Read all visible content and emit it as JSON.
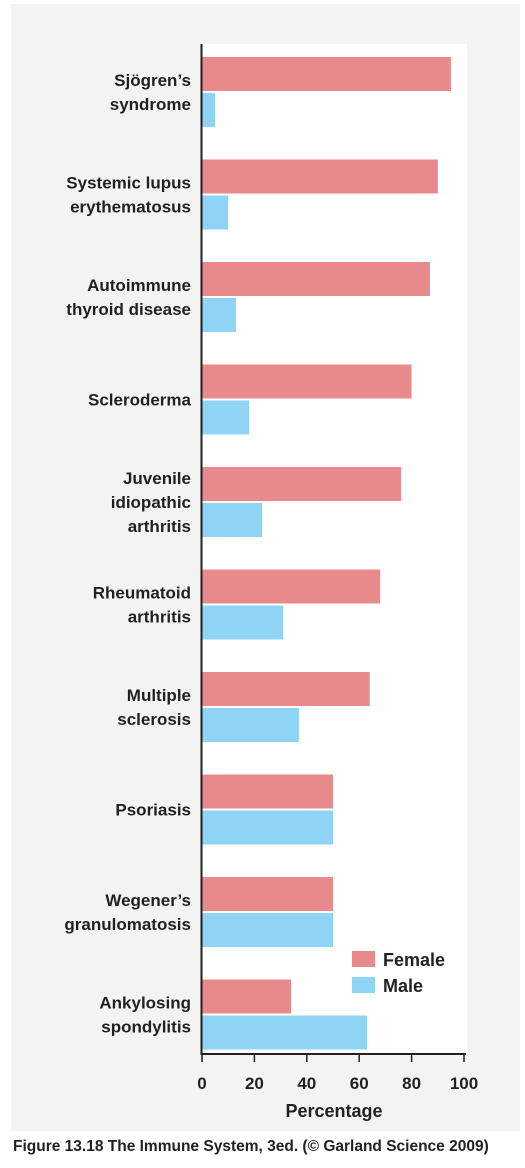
{
  "chart_data": {
    "type": "bar",
    "orientation": "horizontal",
    "categories": [
      [
        "Sjögren’s",
        "syndrome"
      ],
      [
        "Systemic lupus",
        "erythematosus"
      ],
      [
        "Autoimmune",
        "thyroid disease"
      ],
      [
        "Scleroderma"
      ],
      [
        "Juvenile",
        "idiopathic",
        "arthritis"
      ],
      [
        "Rheumatoid",
        "arthritis"
      ],
      [
        "Multiple",
        "sclerosis"
      ],
      [
        "Psoriasis"
      ],
      [
        "Wegener’s",
        "granulomatosis"
      ],
      [
        "Ankylosing",
        "spondylitis"
      ]
    ],
    "series": [
      {
        "name": "Female",
        "color": "#e8898c",
        "values": [
          95,
          90,
          87,
          80,
          76,
          68,
          64,
          50,
          50,
          34
        ]
      },
      {
        "name": "Male",
        "color": "#8fd3f5",
        "values": [
          5,
          10,
          13,
          18,
          23,
          31,
          37,
          50,
          50,
          63
        ]
      }
    ],
    "xlabel": "Percentage",
    "xlim": [
      0,
      100
    ],
    "xticks": [
      "0",
      "20",
      "40",
      "60",
      "80",
      "100"
    ],
    "grid": false,
    "legend_position": "bottom-right"
  },
  "caption": "Figure 13.18 The Immune System, 3ed. (© Garland Science 2009)"
}
